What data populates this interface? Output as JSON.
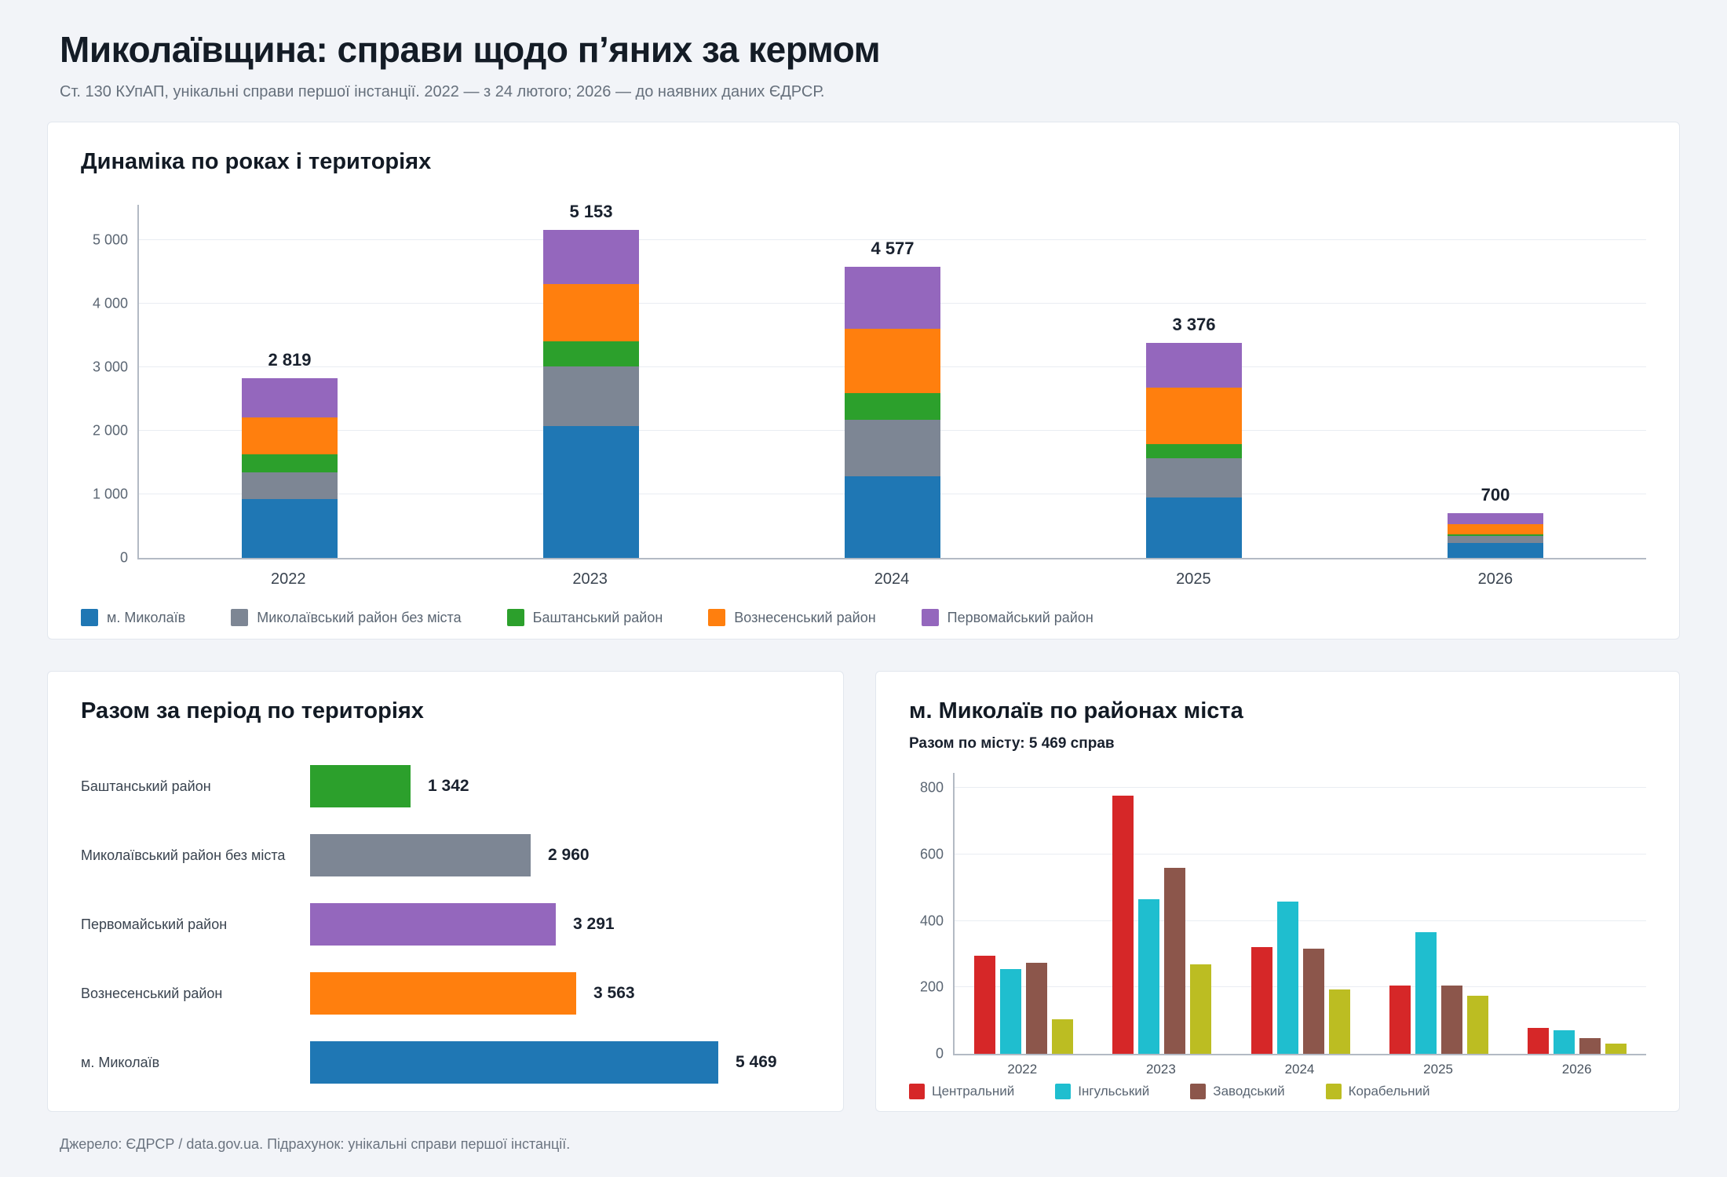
{
  "header": {
    "title": "Миколаївщина: справи щодо п’яних за кермом",
    "subtitle": "Ст. 130 КУпАП, унікальні справи першої інстанції. 2022 — з 24 лютого; 2026 — до наявних даних ЄДРСР."
  },
  "panels": {
    "dynamics": {
      "title": "Динаміка по роках і територіях"
    },
    "totals": {
      "title": "Разом за період по територіях"
    },
    "city": {
      "title": "м. Миколаїв по районах міста",
      "subtitle": "Разом по місту: 5 469 справ"
    }
  },
  "footer": {
    "text": "Джерело: ЄДРСР / data.gov.ua. Підрахунок: унікальні справи першої інстанції."
  },
  "colors": {
    "mykolaiv_city": "#1f77b4",
    "mykolaiv_raion": "#7d8694",
    "bashtanka": "#2ca02c",
    "voznesensk": "#ff7f0e",
    "pervomaisk": "#9467bd",
    "central": "#d62728",
    "inhulskyi": "#1fbecf",
    "zavodskyi": "#8c564b",
    "korabelnyi": "#bcbd22"
  },
  "chart_data": [
    {
      "type": "bar",
      "variant": "stacked-column",
      "title": "Динаміка по роках і територіях",
      "categories": [
        "2022",
        "2023",
        "2024",
        "2025",
        "2026"
      ],
      "series": [
        {
          "name": "м. Миколаїв",
          "color": "#1f77b4",
          "values": [
            929,
            2070,
            1289,
            951,
            230
          ]
        },
        {
          "name": "Миколаївський район без міста",
          "color": "#7d8694",
          "values": [
            412,
            935,
            886,
            610,
            117
          ]
        },
        {
          "name": "Баштанський район",
          "color": "#2ca02c",
          "values": [
            289,
            394,
            412,
            222,
            25
          ]
        },
        {
          "name": "Вознесенський район",
          "color": "#ff7f0e",
          "values": [
            583,
            911,
            1019,
            890,
            160
          ]
        },
        {
          "name": "Первомайський район",
          "color": "#9467bd",
          "values": [
            606,
            843,
            971,
            703,
            168
          ]
        }
      ],
      "totals": [
        2819,
        5153,
        4577,
        3376,
        700
      ],
      "totals_display": [
        "2 819",
        "5 153",
        "4 577",
        "3 376",
        "700"
      ],
      "ylim": [
        0,
        5550
      ],
      "yticks": [
        0,
        1000,
        2000,
        3000,
        4000,
        5000
      ],
      "ytick_labels": [
        "0",
        "1 000",
        "2 000",
        "3 000",
        "4 000",
        "5 000"
      ],
      "grid": true,
      "legend_position": "bottom"
    },
    {
      "type": "bar",
      "variant": "horizontal-bar",
      "title": "Разом за період по територіях",
      "categories": [
        "Баштанський район",
        "Миколаївський район без міста",
        "Первомайський район",
        "Вознесенський район",
        "м. Миколаїв"
      ],
      "values": [
        1342,
        2960,
        3291,
        3563,
        5469
      ],
      "value_labels": [
        "1 342",
        "2 960",
        "3 291",
        "3 563",
        "5 469"
      ],
      "colors": [
        "#2ca02c",
        "#7d8694",
        "#9467bd",
        "#ff7f0e",
        "#1f77b4"
      ],
      "xmax": 5469
    },
    {
      "type": "bar",
      "variant": "grouped-column",
      "title": "м. Миколаїв по районах міста",
      "subtitle": "Разом по місту: 5 469 справ",
      "categories": [
        "2022",
        "2023",
        "2024",
        "2025",
        "2026"
      ],
      "series": [
        {
          "name": "Центральний",
          "color": "#d62728",
          "values": [
            296,
            776,
            321,
            206,
            79
          ]
        },
        {
          "name": "Інгульський",
          "color": "#1fbecf",
          "values": [
            256,
            466,
            457,
            365,
            72
          ]
        },
        {
          "name": "Заводський",
          "color": "#8c564b",
          "values": [
            273,
            560,
            317,
            206,
            48
          ]
        },
        {
          "name": "Корабельний",
          "color": "#bcbd22",
          "values": [
            104,
            268,
            194,
            174,
            31
          ]
        }
      ],
      "ylim": [
        0,
        845
      ],
      "yticks": [
        0,
        200,
        400,
        600,
        800
      ],
      "ytick_labels": [
        "0",
        "200",
        "400",
        "600",
        "800"
      ],
      "grid": true,
      "legend_position": "bottom"
    }
  ]
}
